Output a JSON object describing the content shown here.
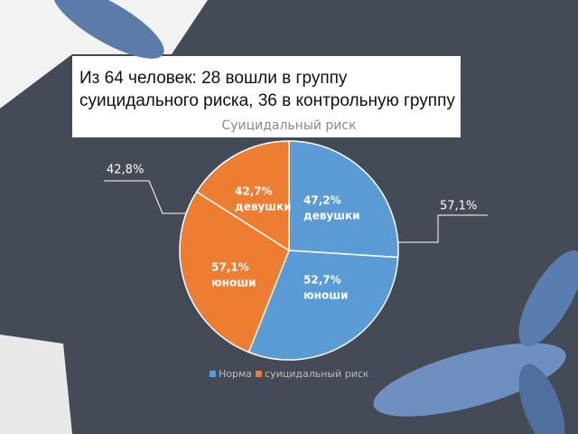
{
  "heading": "Из 64 человек: 28 вошли в группу суицидального риска, 36 в контрольную группу",
  "chart_data": {
    "type": "pie",
    "title": "Суицидальный риск",
    "legend": [
      {
        "name": "Норма",
        "color": "#5b9bd5"
      },
      {
        "name": "суицидальный риск",
        "color": "#ed7d31"
      }
    ],
    "slices": [
      {
        "value": 26,
        "color": "#5b9bd5",
        "label": "47,2%",
        "sublabel": "девушки"
      },
      {
        "value": 30,
        "color": "#5b9bd5",
        "label": "52,7%",
        "sublabel": "юноши"
      },
      {
        "value": 28,
        "color": "#ed7d31",
        "label": "57,1%",
        "sublabel": "юноши"
      },
      {
        "value": 16,
        "color": "#ed7d31",
        "label": "42,7%",
        "sublabel": "девушки"
      }
    ],
    "annotations": [
      "42,8%",
      "57,1%"
    ]
  }
}
